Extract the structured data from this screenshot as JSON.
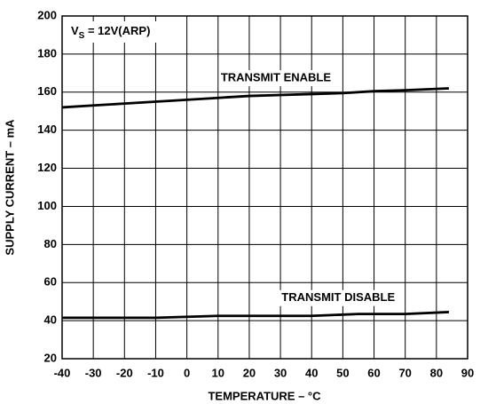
{
  "chart_data": {
    "type": "line",
    "xlabel": "TEMPERATURE – °C",
    "ylabel": "SUPPLY CURRENT – mA",
    "annotation": {
      "main": "V",
      "sub": "S",
      "rest": " = 12V(ARP)"
    },
    "xlim": [
      -40,
      90
    ],
    "ylim": [
      20,
      200
    ],
    "xticks": [
      -40,
      -30,
      -20,
      -10,
      0,
      10,
      20,
      30,
      40,
      50,
      60,
      70,
      80,
      90
    ],
    "yticks": [
      20,
      40,
      60,
      80,
      100,
      120,
      140,
      160,
      180,
      200
    ],
    "grid": true,
    "series": [
      {
        "name": "TRANSMIT ENABLE",
        "color": "#000000",
        "x": [
          -40,
          -30,
          -20,
          -10,
          0,
          10,
          20,
          30,
          40,
          50,
          60,
          70,
          84
        ],
        "values": [
          152,
          153,
          154,
          155,
          156,
          157,
          158,
          158.5,
          159,
          159.5,
          160.5,
          161,
          162
        ]
      },
      {
        "name": "TRANSMIT DISABLE",
        "color": "#000000",
        "x": [
          -40,
          -10,
          10,
          40,
          55,
          70,
          84
        ],
        "values": [
          41.5,
          41.5,
          42.5,
          42.5,
          43.5,
          43.5,
          44.5
        ]
      }
    ]
  }
}
